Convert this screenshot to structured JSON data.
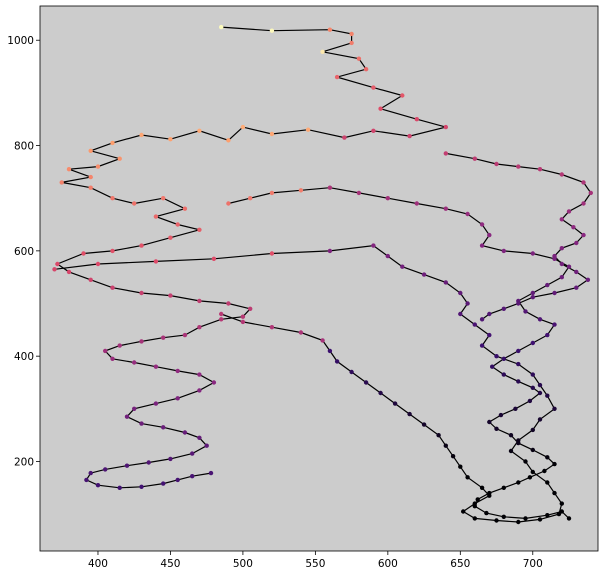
{
  "chart_data": {
    "type": "line",
    "title": "",
    "xlabel": "",
    "ylabel": "",
    "xlim": [
      360,
      745
    ],
    "ylim": [
      30,
      1065
    ],
    "xticks": [
      400,
      450,
      500,
      550,
      600,
      650,
      700
    ],
    "yticks": [
      200,
      400,
      600,
      800,
      1000
    ],
    "grid": false,
    "legend": "none",
    "plot_background": "#cccccc",
    "line_color": "#000000",
    "colormap": "magma",
    "colormap_stops": [
      "#000004",
      "#3b0f70",
      "#8c2981",
      "#de4968",
      "#fe9f6d",
      "#fcfdbf"
    ],
    "marker": "circle",
    "series": [
      {
        "points": [
          [
            485,
            1025
          ],
          [
            520,
            1018
          ],
          [
            560,
            1020
          ],
          [
            575,
            1012
          ],
          [
            575,
            995
          ],
          [
            555,
            978
          ],
          [
            580,
            965
          ],
          [
            585,
            945
          ],
          [
            565,
            930
          ],
          [
            590,
            910
          ],
          [
            610,
            895
          ],
          [
            595,
            870
          ],
          [
            620,
            850
          ],
          [
            640,
            835
          ],
          [
            615,
            818
          ],
          [
            590,
            828
          ],
          [
            570,
            815
          ],
          [
            545,
            830
          ],
          [
            520,
            822
          ],
          [
            500,
            835
          ],
          [
            490,
            810
          ],
          [
            470,
            828
          ],
          [
            450,
            812
          ],
          [
            430,
            820
          ],
          [
            410,
            805
          ],
          [
            395,
            790
          ],
          [
            415,
            775
          ],
          [
            400,
            760
          ],
          [
            380,
            755
          ],
          [
            395,
            740
          ],
          [
            375,
            730
          ],
          [
            395,
            720
          ],
          [
            410,
            700
          ],
          [
            425,
            690
          ],
          [
            445,
            700
          ],
          [
            460,
            680
          ],
          [
            440,
            665
          ],
          [
            455,
            650
          ],
          [
            470,
            640
          ],
          [
            450,
            625
          ],
          [
            430,
            610
          ],
          [
            410,
            600
          ],
          [
            390,
            595
          ],
          [
            372,
            575
          ],
          [
            380,
            560
          ],
          [
            395,
            545
          ],
          [
            410,
            530
          ],
          [
            430,
            520
          ],
          [
            450,
            515
          ],
          [
            470,
            505
          ],
          [
            490,
            500
          ],
          [
            505,
            490
          ],
          [
            500,
            475
          ],
          [
            485,
            470
          ],
          [
            470,
            455
          ],
          [
            460,
            440
          ],
          [
            445,
            435
          ],
          [
            430,
            428
          ],
          [
            415,
            420
          ],
          [
            405,
            410
          ],
          [
            410,
            395
          ],
          [
            425,
            388
          ],
          [
            440,
            380
          ],
          [
            455,
            372
          ],
          [
            470,
            365
          ],
          [
            480,
            350
          ],
          [
            470,
            335
          ],
          [
            455,
            320
          ],
          [
            440,
            310
          ],
          [
            425,
            300
          ],
          [
            420,
            285
          ],
          [
            430,
            272
          ],
          [
            445,
            265
          ],
          [
            460,
            255
          ],
          [
            470,
            245
          ],
          [
            475,
            230
          ],
          [
            465,
            215
          ],
          [
            450,
            205
          ],
          [
            435,
            198
          ],
          [
            420,
            192
          ],
          [
            405,
            185
          ],
          [
            395,
            178
          ],
          [
            392,
            165
          ],
          [
            400,
            155
          ],
          [
            415,
            150
          ],
          [
            430,
            152
          ],
          [
            445,
            158
          ],
          [
            455,
            165
          ],
          [
            465,
            172
          ],
          [
            478,
            178
          ]
        ]
      },
      {
        "points": [
          [
            370,
            565
          ],
          [
            400,
            575
          ],
          [
            440,
            580
          ],
          [
            480,
            585
          ],
          [
            520,
            595
          ],
          [
            560,
            600
          ],
          [
            590,
            610
          ],
          [
            600,
            590
          ],
          [
            610,
            570
          ],
          [
            625,
            555
          ],
          [
            640,
            540
          ],
          [
            650,
            520
          ],
          [
            655,
            500
          ],
          [
            650,
            480
          ],
          [
            660,
            460
          ],
          [
            670,
            440
          ],
          [
            665,
            420
          ],
          [
            675,
            400
          ],
          [
            690,
            385
          ],
          [
            700,
            365
          ],
          [
            705,
            345
          ],
          [
            710,
            325
          ],
          [
            715,
            300
          ],
          [
            705,
            280
          ],
          [
            700,
            260
          ],
          [
            690,
            240
          ],
          [
            685,
            220
          ],
          [
            695,
            200
          ],
          [
            700,
            180
          ],
          [
            710,
            160
          ],
          [
            715,
            140
          ],
          [
            720,
            120
          ],
          [
            718,
            100
          ],
          [
            705,
            90
          ],
          [
            690,
            85
          ],
          [
            675,
            88
          ],
          [
            660,
            92
          ],
          [
            652,
            105
          ],
          [
            660,
            120
          ],
          [
            670,
            135
          ],
          [
            665,
            150
          ],
          [
            655,
            170
          ],
          [
            650,
            190
          ],
          [
            645,
            210
          ],
          [
            640,
            230
          ],
          [
            635,
            250
          ],
          [
            625,
            270
          ],
          [
            615,
            290
          ],
          [
            605,
            310
          ],
          [
            595,
            330
          ],
          [
            585,
            350
          ],
          [
            575,
            370
          ],
          [
            565,
            390
          ],
          [
            560,
            410
          ],
          [
            555,
            430
          ],
          [
            540,
            445
          ],
          [
            520,
            455
          ],
          [
            500,
            465
          ],
          [
            485,
            480
          ]
        ]
      },
      {
        "points": [
          [
            490,
            690
          ],
          [
            505,
            700
          ],
          [
            520,
            710
          ],
          [
            540,
            715
          ],
          [
            560,
            720
          ],
          [
            580,
            710
          ],
          [
            600,
            700
          ],
          [
            620,
            690
          ],
          [
            640,
            680
          ],
          [
            655,
            670
          ],
          [
            665,
            650
          ],
          [
            670,
            630
          ],
          [
            665,
            610
          ],
          [
            680,
            600
          ],
          [
            700,
            595
          ],
          [
            715,
            585
          ],
          [
            725,
            570
          ],
          [
            720,
            550
          ],
          [
            710,
            535
          ],
          [
            700,
            520
          ],
          [
            690,
            505
          ],
          [
            695,
            485
          ],
          [
            705,
            470
          ],
          [
            715,
            460
          ],
          [
            710,
            440
          ],
          [
            700,
            425
          ],
          [
            690,
            410
          ],
          [
            680,
            395
          ],
          [
            672,
            380
          ],
          [
            680,
            365
          ],
          [
            690,
            352
          ],
          [
            700,
            340
          ],
          [
            705,
            330
          ],
          [
            698,
            315
          ],
          [
            688,
            300
          ],
          [
            678,
            288
          ],
          [
            670,
            275
          ],
          [
            675,
            262
          ],
          [
            685,
            250
          ],
          [
            690,
            235
          ],
          [
            700,
            222
          ],
          [
            710,
            208
          ],
          [
            715,
            195
          ],
          [
            708,
            182
          ],
          [
            698,
            170
          ],
          [
            690,
            160
          ],
          [
            680,
            150
          ],
          [
            670,
            140
          ],
          [
            662,
            128
          ],
          [
            660,
            115
          ],
          [
            668,
            102
          ],
          [
            680,
            95
          ],
          [
            695,
            92
          ],
          [
            710,
            98
          ],
          [
            720,
            105
          ],
          [
            725,
            92
          ]
        ]
      },
      {
        "points": [
          [
            640,
            785
          ],
          [
            660,
            775
          ],
          [
            675,
            765
          ],
          [
            690,
            760
          ],
          [
            705,
            755
          ],
          [
            720,
            745
          ],
          [
            735,
            730
          ],
          [
            740,
            710
          ],
          [
            735,
            690
          ],
          [
            725,
            675
          ],
          [
            720,
            660
          ],
          [
            728,
            645
          ],
          [
            735,
            630
          ],
          [
            730,
            615
          ],
          [
            720,
            605
          ],
          [
            715,
            590
          ],
          [
            720,
            575
          ],
          [
            730,
            560
          ],
          [
            738,
            545
          ],
          [
            730,
            530
          ],
          [
            715,
            520
          ],
          [
            700,
            512
          ],
          [
            690,
            500
          ],
          [
            680,
            490
          ],
          [
            670,
            480
          ],
          [
            665,
            470
          ]
        ]
      }
    ]
  }
}
